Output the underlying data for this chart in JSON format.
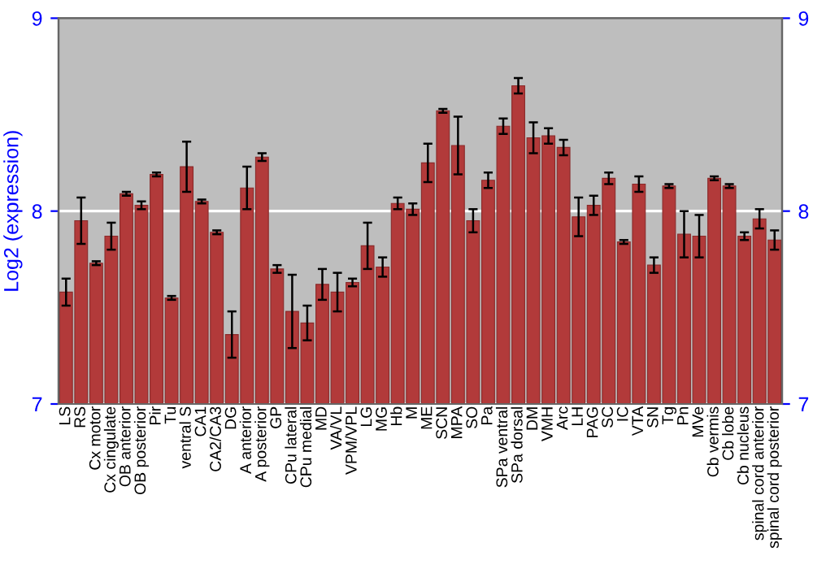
{
  "chart_data": {
    "type": "bar",
    "ylabel": "Log2 (expression)",
    "categories": [
      "LS",
      "RS",
      "Cx motor",
      "Cx cingulate",
      "OB anterior",
      "OB posterior",
      "Pir",
      "Tu",
      "ventral S",
      "CA1",
      "CA2/CA3",
      "DG",
      "A anterior",
      "A posterior",
      "GP",
      "CPu lateral",
      "CPu medial",
      "MD",
      "VA/VL",
      "VPM/VPL",
      "LG",
      "MG",
      "Hb",
      "M",
      "ME",
      "SCN",
      "MPA",
      "SO",
      "Pa",
      "SPa ventral",
      "SPa dorsal",
      "DM",
      "VMH",
      "Arc",
      "LH",
      "PAG",
      "SC",
      "IC",
      "VTA",
      "SN",
      "Tg",
      "Pn",
      "MVe",
      "Cb vermis",
      "Cb lobe",
      "Cb nucleus",
      "spinal cord anterior",
      "spinal cord posterior"
    ],
    "values": [
      7.58,
      7.95,
      7.73,
      7.87,
      8.09,
      8.03,
      8.19,
      7.55,
      8.23,
      8.05,
      7.89,
      7.36,
      8.12,
      8.28,
      7.7,
      7.48,
      7.42,
      7.62,
      7.58,
      7.63,
      7.82,
      7.71,
      8.04,
      8.01,
      8.25,
      8.52,
      8.34,
      7.95,
      8.16,
      8.44,
      8.65,
      8.38,
      8.39,
      8.33,
      7.97,
      8.03,
      8.17,
      7.84,
      8.14,
      7.72,
      8.13,
      7.88,
      7.87,
      8.17,
      8.13,
      7.87,
      7.96,
      7.85
    ],
    "errors": [
      0.07,
      0.12,
      0.01,
      0.07,
      0.01,
      0.02,
      0.01,
      0.01,
      0.13,
      0.01,
      0.01,
      0.12,
      0.11,
      0.02,
      0.02,
      0.19,
      0.09,
      0.08,
      0.1,
      0.02,
      0.12,
      0.05,
      0.03,
      0.03,
      0.1,
      0.01,
      0.15,
      0.06,
      0.04,
      0.04,
      0.04,
      0.08,
      0.04,
      0.04,
      0.1,
      0.05,
      0.03,
      0.01,
      0.04,
      0.04,
      0.01,
      0.12,
      0.11,
      0.01,
      0.01,
      0.02,
      0.05,
      0.05
    ],
    "color": "#b23a3a",
    "ylim": [
      7,
      9
    ],
    "yticks": [
      7,
      8,
      9
    ],
    "y2lim": [
      7,
      9
    ],
    "y2ticks": [
      7,
      8,
      9
    ],
    "grid": "y"
  }
}
